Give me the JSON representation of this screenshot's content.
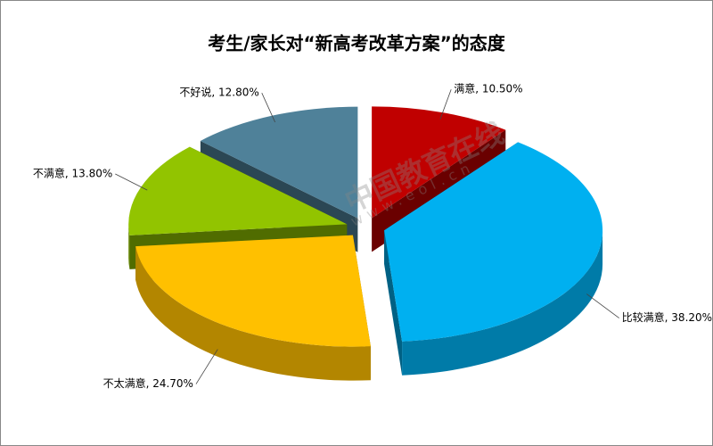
{
  "chart_data": {
    "type": "pie",
    "title": "考生/家长对“新高考改革方案”的态度",
    "values": [
      10.5,
      38.2,
      24.7,
      13.8,
      12.8
    ],
    "value_labels": [
      "满意, 10.50%",
      "比较满意, 38.20%",
      "不太满意, 24.70%",
      "不满意, 13.80%",
      "不好说, 12.80%"
    ],
    "colors": [
      "#c00000",
      "#00b0f0",
      "#ffc000",
      "#92c400",
      "#4f8199"
    ],
    "watermark": [
      "中国教育在线",
      "www.eol.cn"
    ]
  }
}
